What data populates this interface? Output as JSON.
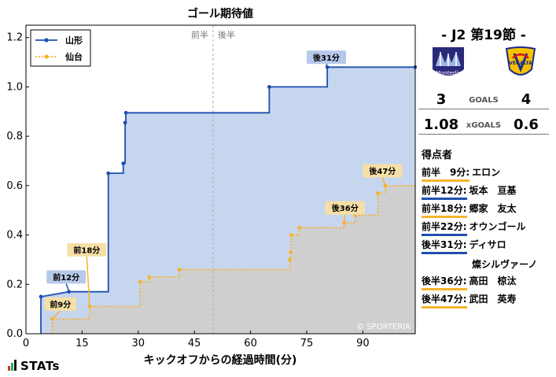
{
  "chart_data": {
    "type": "line",
    "title": "ゴール期待値",
    "xlabel": "キックオフからの経過時間(分)",
    "ylabel": "",
    "xlim": [
      0,
      104
    ],
    "ylim": [
      0,
      1.25
    ],
    "xticks": [
      0,
      15,
      30,
      45,
      60,
      75,
      90
    ],
    "yticks": [
      0.0,
      0.2,
      0.4,
      0.6,
      0.8,
      1.0,
      1.2
    ],
    "half_labels": {
      "first": "前半",
      "second": "後半"
    },
    "half_time": 50,
    "legend": {
      "position": "top-left"
    },
    "watermark": "© SPORTERIA",
    "series": [
      {
        "name": "山形",
        "color": "#1f4faf",
        "fill": "#c7d6ef",
        "style": "solid",
        "points": [
          [
            4,
            0
          ],
          [
            4,
            0.15
          ],
          [
            11.5,
            0.17
          ],
          [
            22,
            0.17
          ],
          [
            22,
            0.65
          ],
          [
            26,
            0.65
          ],
          [
            26,
            0.69
          ],
          [
            26.5,
            0.69
          ],
          [
            26.5,
            0.855
          ],
          [
            26.7,
            0.855
          ],
          [
            26.7,
            0.895
          ],
          [
            65,
            0.895
          ],
          [
            65,
            1.0
          ],
          [
            80.5,
            1.0
          ],
          [
            80.5,
            1.08
          ],
          [
            104,
            1.08
          ]
        ],
        "markers": [
          [
            4,
            0.15
          ],
          [
            11.5,
            0.17
          ],
          [
            22,
            0.65
          ],
          [
            26,
            0.69
          ],
          [
            26.5,
            0.855
          ],
          [
            26.7,
            0.895
          ],
          [
            65,
            1.0
          ],
          [
            80.5,
            1.08
          ],
          [
            104,
            1.08
          ]
        ]
      },
      {
        "name": "仙台",
        "color": "#f7b32b",
        "fill": "#cfcfcf",
        "style": "dotted",
        "points": [
          [
            7,
            0
          ],
          [
            7,
            0.06
          ],
          [
            17,
            0.06
          ],
          [
            17,
            0.11
          ],
          [
            30.5,
            0.11
          ],
          [
            30.5,
            0.21
          ],
          [
            33,
            0.21
          ],
          [
            33,
            0.23
          ],
          [
            41,
            0.23
          ],
          [
            41,
            0.26
          ],
          [
            70.5,
            0.26
          ],
          [
            70.5,
            0.3
          ],
          [
            70.7,
            0.3
          ],
          [
            70.7,
            0.33
          ],
          [
            70.9,
            0.33
          ],
          [
            70.9,
            0.4
          ],
          [
            73,
            0.4
          ],
          [
            73,
            0.43
          ],
          [
            85,
            0.43
          ],
          [
            85,
            0.45
          ],
          [
            88,
            0.45
          ],
          [
            88,
            0.48
          ],
          [
            94,
            0.48
          ],
          [
            94,
            0.57
          ],
          [
            96,
            0.57
          ],
          [
            96,
            0.6
          ],
          [
            104,
            0.6
          ]
        ],
        "markers": [
          [
            7,
            0.06
          ],
          [
            17,
            0.11
          ],
          [
            30.5,
            0.21
          ],
          [
            33,
            0.23
          ],
          [
            41,
            0.26
          ],
          [
            70.5,
            0.3
          ],
          [
            70.7,
            0.33
          ],
          [
            70.9,
            0.4
          ],
          [
            73,
            0.43
          ],
          [
            85,
            0.45
          ],
          [
            88,
            0.48
          ],
          [
            94,
            0.57
          ],
          [
            96,
            0.6
          ]
        ]
      }
    ],
    "annotations": [
      {
        "text": "後31分",
        "team": "山形",
        "x": 80.5,
        "y": 1.08,
        "lx": 75,
        "ly": 1.12
      },
      {
        "text": "前12分",
        "team": "山形",
        "x": 11.5,
        "y": 0.17,
        "lx": 5.5,
        "ly": 0.23
      },
      {
        "text": "前9分",
        "team": "仙台",
        "x": 7,
        "y": 0.06,
        "lx": 5,
        "ly": 0.12
      },
      {
        "text": "前18分",
        "team": "仙台",
        "x": 17,
        "y": 0.11,
        "lx": 11,
        "ly": 0.34
      },
      {
        "text": "後47分",
        "team": "仙台",
        "x": 96,
        "y": 0.6,
        "lx": 90,
        "ly": 0.66
      },
      {
        "text": "後36分",
        "team": "仙台",
        "x": 85,
        "y": 0.45,
        "lx": 80,
        "ly": 0.51
      }
    ]
  },
  "match": {
    "title": "-  J2 第19節  -",
    "home": {
      "name": "山形",
      "crest_text": "Montedio",
      "goals": "3",
      "xg": "1.08",
      "color": "#1f4faf"
    },
    "away": {
      "name": "仙台",
      "crest_text": "VEGALTA",
      "goals": "4",
      "xg": "0.6",
      "color": "#f7b32b"
    },
    "goals_label": "GOALS",
    "xg_label": "xGOALS"
  },
  "scorers": {
    "heading": "得点者",
    "items": [
      {
        "time": "前半　9分:",
        "name": "エロン",
        "team": "away"
      },
      {
        "time": "前半12分:",
        "name": "坂本　亘基",
        "team": "home"
      },
      {
        "time": "前半18分:",
        "name": "郷家　友太",
        "team": "away"
      },
      {
        "time": "前半22分:",
        "name": "オウンゴール",
        "team": "home"
      },
      {
        "time": "後半31分:",
        "name": "ディサロ",
        "name2": "燦シルヴァーノ",
        "team": "home"
      },
      {
        "time": "後半36分:",
        "name": "高田　椋汰",
        "team": "away"
      },
      {
        "time": "後半47分:",
        "name": "武田　英寿",
        "team": "away"
      }
    ]
  },
  "brand": "STATs"
}
